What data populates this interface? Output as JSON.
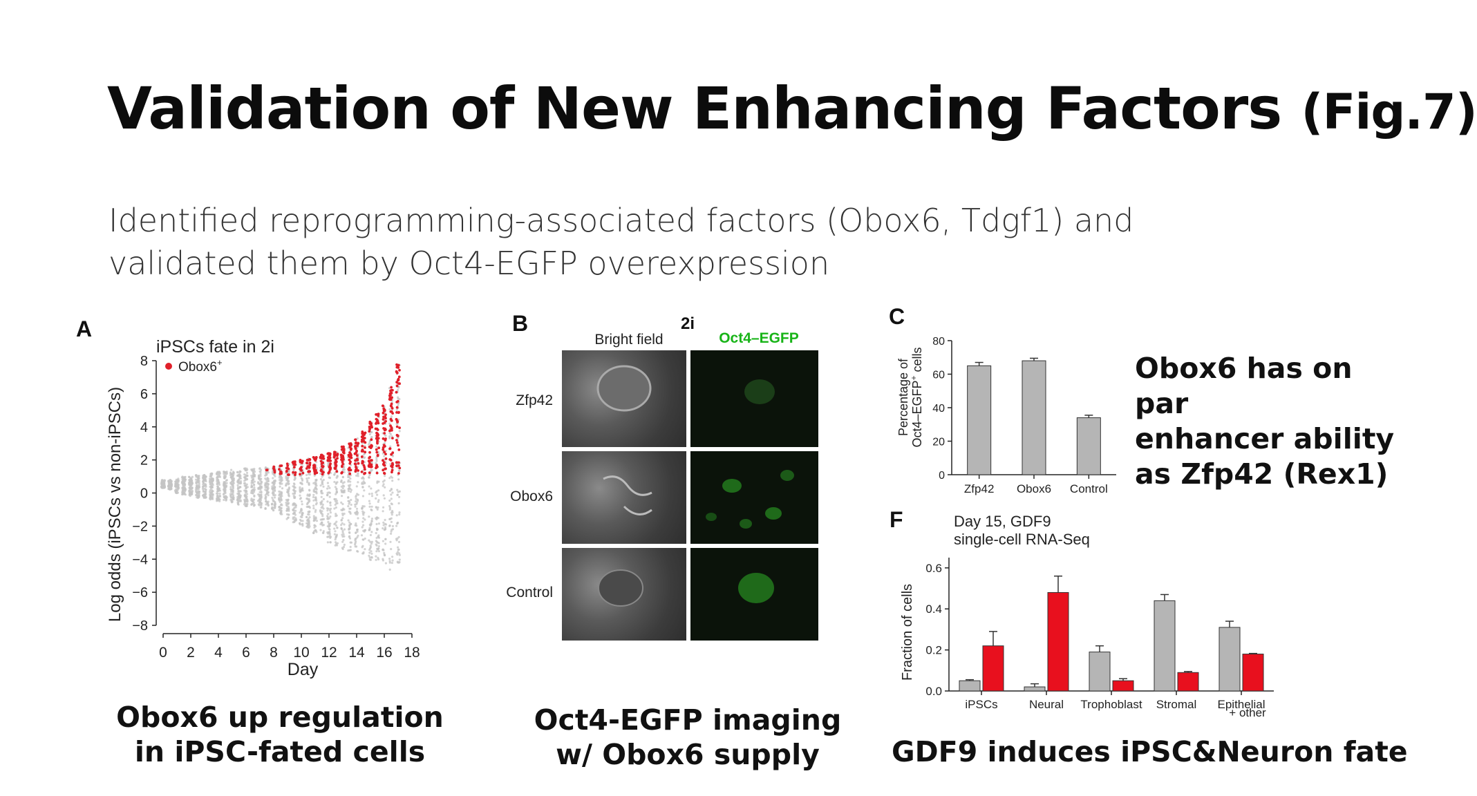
{
  "slide": {
    "title_main": "Validation of New Enhancing Factors",
    "title_fig": "(Fig.7)",
    "subtitle_line1": "Identified reprogramming-associated factors (Obox6, Tdgf1) and",
    "subtitle_line2": "validated them by Oct4-EGFP overexpression"
  },
  "captions": {
    "a_line1": "Obox6 up regulation",
    "a_line2": "in iPSC-fated cells",
    "b_line1": "Oct4-EGFP imaging",
    "b_line2": "w/ Obox6 supply",
    "f": "GDF9 induces iPSC&Neuron fate"
  },
  "side_note": {
    "line1": "Obox6 has on par",
    "line2": "enhancer ability",
    "line3": "as Zfp42 (Rex1)"
  },
  "panel_a": {
    "letter": "A",
    "title": "iPSCs fate in 2i",
    "legend": "Obox6",
    "legend_sup": "+",
    "ylabel": "Log odds (iPSCs vs non-iPSCs)",
    "xlabel": "Day",
    "highlight_color": "#e0202a",
    "base_color": "#c4c4c4"
  },
  "panel_b": {
    "letter": "B",
    "condition": "2i",
    "col1": "Bright field",
    "col2": "Oct4–EGFP",
    "col2_color": "#18b418",
    "rows": [
      "Zfp42",
      "Obox6",
      "Control"
    ]
  },
  "panel_c": {
    "letter": "C",
    "ylabel_line1": "Percentage of",
    "ylabel_line2": "Oct4–EGFP",
    "ylabel_sup": "+",
    "ylabel_tail": " cells"
  },
  "panel_f": {
    "letter": "F",
    "title_line1": "Day 15, GDF9",
    "title_line2": "single-cell RNA-Seq",
    "ylabel": "Fraction of cells",
    "last_category_line2": "+ other"
  },
  "chart_data": [
    {
      "type": "scatter",
      "panel": "A",
      "title": "iPSCs fate in 2i",
      "xlabel": "Day",
      "ylabel": "Log odds (iPSCs vs non-iPSCs)",
      "xlim": [
        0,
        18
      ],
      "ylim": [
        -8,
        8
      ],
      "xticks": [
        0,
        2,
        4,
        6,
        8,
        10,
        12,
        14,
        16,
        18
      ],
      "yticks": [
        -8,
        -6,
        -4,
        -2,
        0,
        2,
        4,
        6,
        8
      ],
      "series": [
        {
          "name": "Obox6+",
          "days": [
            0,
            0.5,
            1,
            1.5,
            2,
            2.5,
            3,
            3.5,
            4,
            4.5,
            5,
            5.5,
            6,
            6.5,
            7,
            7.5,
            8,
            8.5,
            9,
            9.5,
            10,
            10.5,
            11,
            11.5,
            12,
            12.5,
            13,
            13.5,
            14,
            14.5,
            15,
            15.5,
            16,
            16.5,
            17
          ],
          "upper": [
            0.8,
            0.8,
            0.9,
            1.0,
            1.0,
            1.1,
            1.1,
            1.2,
            1.3,
            1.3,
            1.4,
            1.4,
            1.5,
            1.5,
            1.5,
            1.6,
            1.6,
            1.7,
            1.8,
            1.9,
            2.0,
            2.1,
            2.2,
            2.3,
            2.4,
            2.5,
            2.8,
            3.0,
            3.3,
            3.7,
            4.3,
            4.8,
            5.3,
            6.5,
            7.8
          ],
          "lower": [
            0.3,
            0.2,
            0.0,
            -0.1,
            -0.2,
            -0.3,
            -0.3,
            -0.4,
            -0.5,
            -0.5,
            -0.6,
            -0.7,
            -0.8,
            -0.8,
            -0.9,
            -1.0,
            -1.1,
            -1.3,
            -1.6,
            -1.8,
            -2.0,
            -2.2,
            -2.5,
            -2.7,
            -3.0,
            -3.2,
            -3.4,
            -3.5,
            -3.7,
            -3.9,
            -4.1,
            -4.3,
            -4.5,
            -4.7,
            -5.0
          ]
        }
      ]
    },
    {
      "type": "bar",
      "panel": "C",
      "categories": [
        "Zfp42",
        "Obox6",
        "Control"
      ],
      "values": [
        65,
        68,
        34
      ],
      "errors": [
        2,
        1.5,
        1.5
      ],
      "ylabel": "Percentage of Oct4–EGFP+ cells",
      "ylim": [
        0,
        80
      ],
      "yticks": [
        0,
        20,
        40,
        60,
        80
      ],
      "bar_color": "#b5b5b5"
    },
    {
      "type": "bar",
      "panel": "F",
      "title": "Day 15, GDF9 single-cell RNA-Seq",
      "ylabel": "Fraction of cells",
      "categories": [
        "iPSCs",
        "Neural",
        "Trophoblast",
        "Stromal",
        "Epithelial"
      ],
      "ylim": [
        0,
        0.65
      ],
      "yticks": [
        "0.0",
        "0.2",
        "0.4",
        "0.6"
      ],
      "series": [
        {
          "values": [
            0.05,
            0.02,
            0.19,
            0.44,
            0.31
          ],
          "errors": [
            0.005,
            0.015,
            0.03,
            0.03,
            0.03
          ],
          "color": "#b5b5b5"
        },
        {
          "values": [
            0.22,
            0.48,
            0.05,
            0.09,
            0.18
          ],
          "errors": [
            0.07,
            0.08,
            0.01,
            0.005,
            0.003
          ],
          "color": "#e8101e"
        }
      ]
    }
  ]
}
